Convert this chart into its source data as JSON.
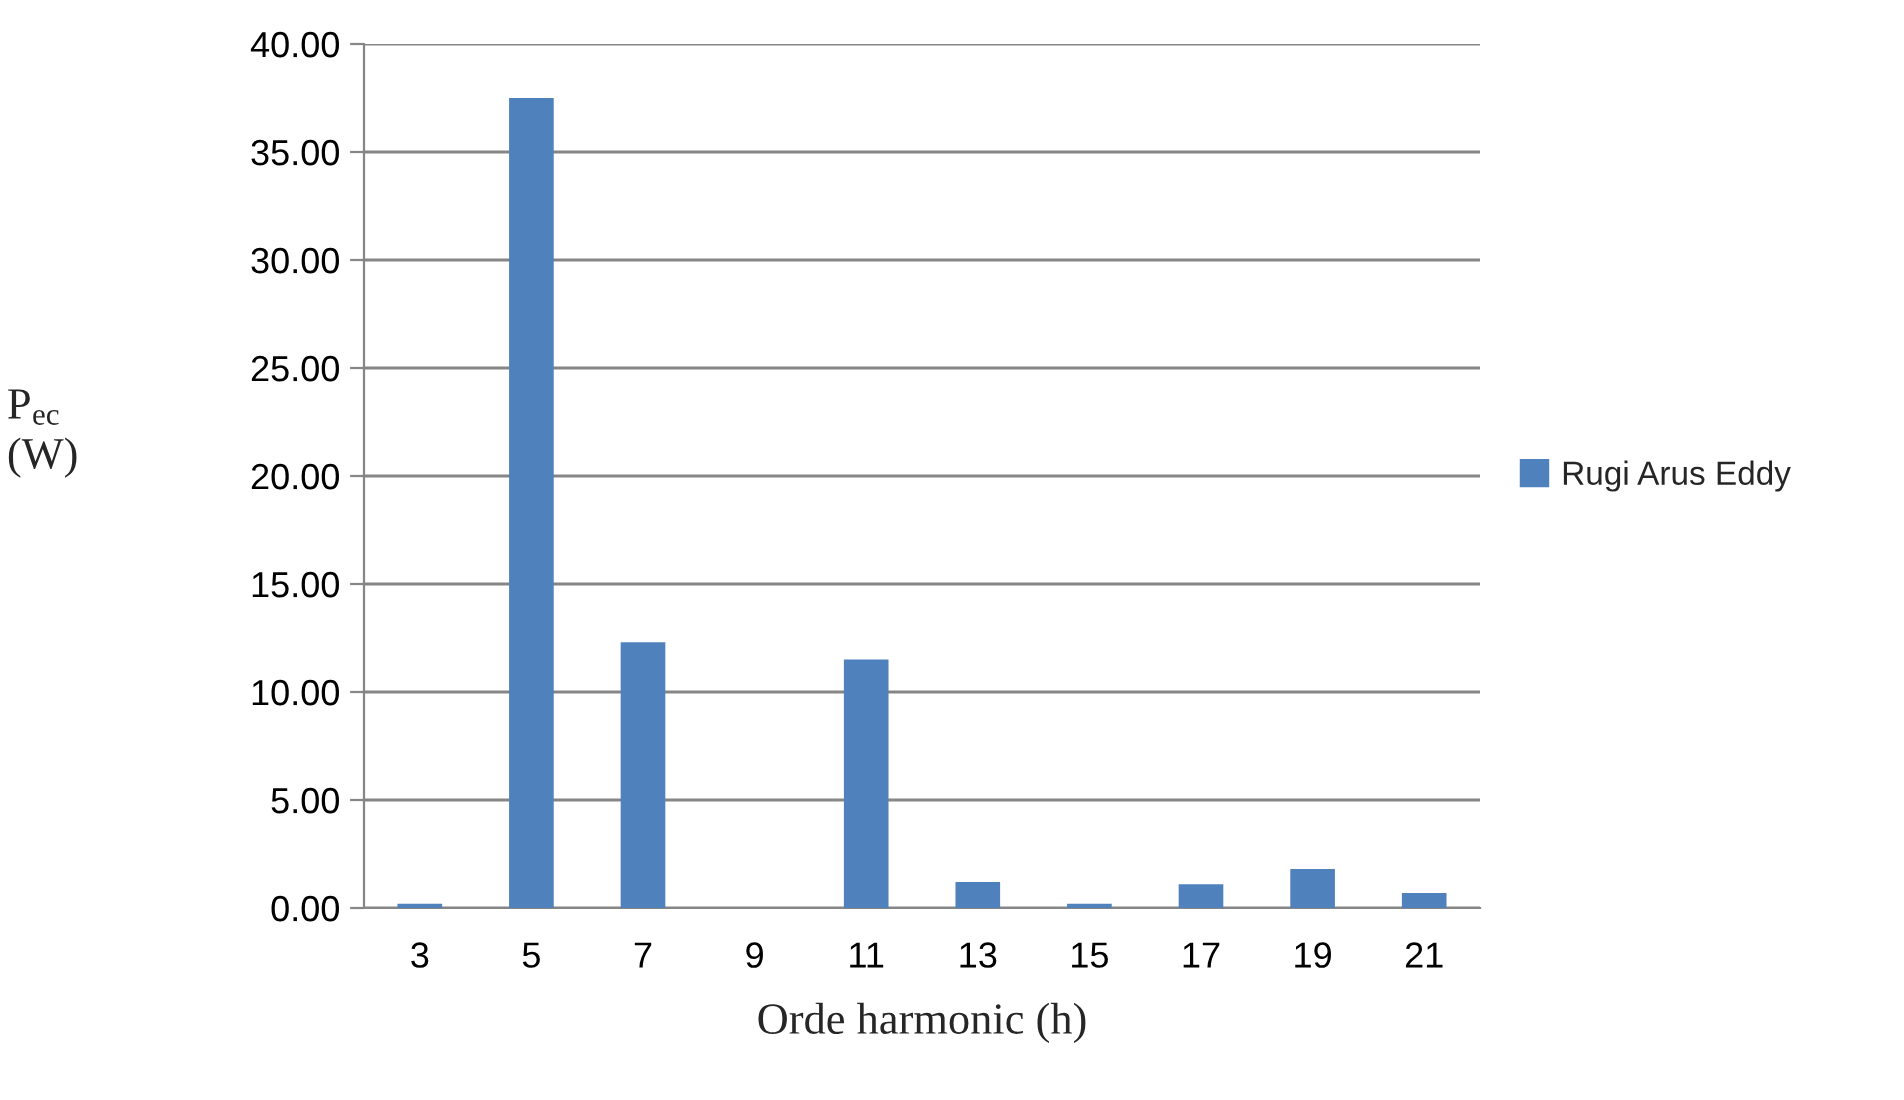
{
  "chart_data": {
    "type": "bar",
    "xlabel": "Orde harmonic (h)",
    "ylabel": "P$_{ec}$\n(W)",
    "categories": [
      "3",
      "5",
      "7",
      "9",
      "11",
      "13",
      "15",
      "17",
      "19",
      "21"
    ],
    "series": [
      {
        "name": "Rugi Arus Eddy",
        "color": "#4f81bd",
        "values": [
          0.2,
          37.5,
          12.3,
          null,
          11.5,
          1.2,
          0.2,
          1.1,
          1.8,
          0.7
        ]
      }
    ],
    "ylim": [
      0,
      40
    ],
    "yticks": [
      {
        "value": 0,
        "label": "0.00"
      },
      {
        "value": 5,
        "label": "5.00"
      },
      {
        "value": 10,
        "label": "10.00"
      },
      {
        "value": 15,
        "label": "15.00"
      },
      {
        "value": 20,
        "label": "20.00"
      },
      {
        "value": 25,
        "label": "25.00"
      },
      {
        "value": 30,
        "label": "30.00"
      },
      {
        "value": 35,
        "label": "35.00"
      },
      {
        "value": 40,
        "label": "40.00"
      }
    ],
    "grid": "y",
    "legend": "right"
  }
}
